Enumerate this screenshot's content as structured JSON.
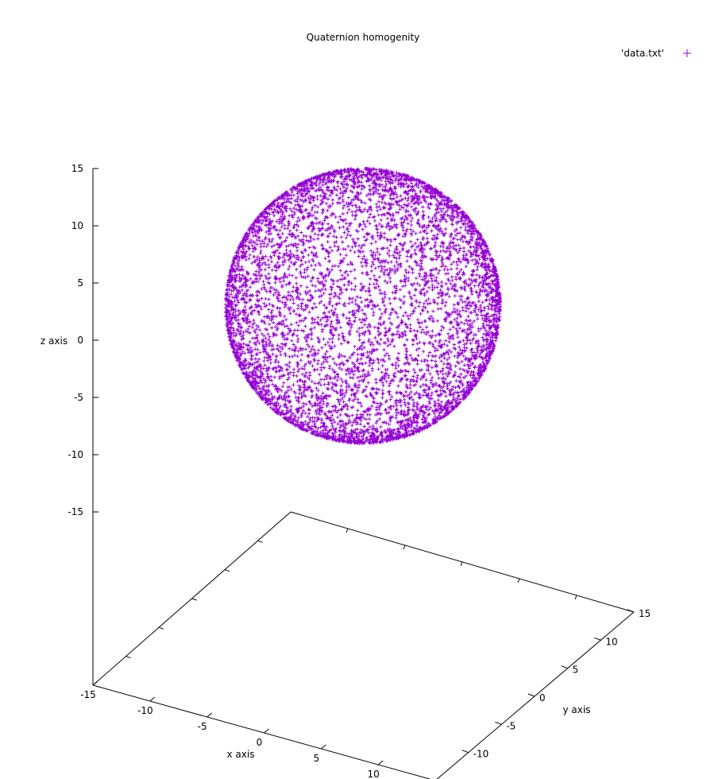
{
  "chart_data": {
    "type": "scatter",
    "subtype": "3d-splot",
    "title": "Quaternion homogenity",
    "legend": {
      "entry": "'data.txt'",
      "placement": "top-right",
      "marker": "plus"
    },
    "xlabel": "x axis",
    "ylabel": "y axis",
    "zlabel": "z axis",
    "xlim": [
      -15,
      15
    ],
    "ylim": [
      -15,
      15
    ],
    "zlim": [
      -15,
      15
    ],
    "x_ticks": [
      "-15",
      "-10",
      "-5",
      "0",
      "5",
      "10"
    ],
    "y_ticks": [
      "-10",
      "-5",
      "0",
      "5",
      "10",
      "15"
    ],
    "z_ticks": [
      "15",
      "10",
      "5",
      "0",
      "-5",
      "-10",
      "-15"
    ],
    "series": [
      {
        "name": "'data.txt'",
        "color": "#9400d3",
        "shape": "sphere",
        "center": [
          0,
          0,
          3
        ],
        "radius": 12,
        "approx_point_count": 20000
      }
    ],
    "grid": false
  }
}
